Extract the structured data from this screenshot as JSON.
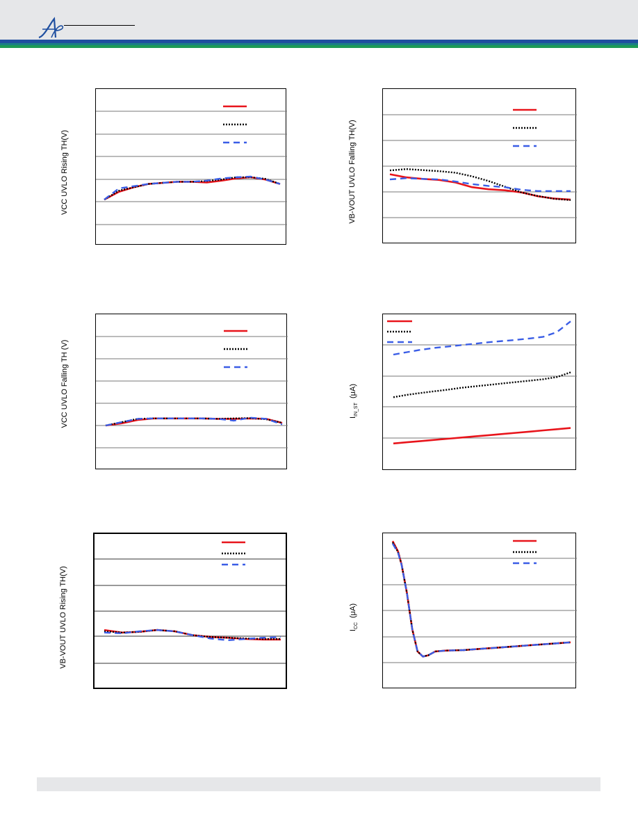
{
  "page": {
    "brand_logo": "AP monogram",
    "colors": {
      "header_band": "#e6e7e9",
      "brand_blue": "#1f4fa0",
      "brand_green": "#1d9a57"
    }
  },
  "chart_data": [
    {
      "id": "vcc-uvlo-rising",
      "type": "line",
      "ylabel": "VCC UVLO Rising TH(V)",
      "grid": "horizontal",
      "legend": "top-right",
      "series": [
        {
          "color": "#e8141b",
          "dash": "solid",
          "values": [
            2.05,
            2.4,
            2.6,
            2.75,
            2.8,
            2.85,
            2.85,
            2.82,
            2.9,
            3.0,
            3.05,
            2.95,
            2.75
          ]
        },
        {
          "color": "#000000",
          "dash": "dotted",
          "values": [
            2.05,
            2.45,
            2.6,
            2.75,
            2.8,
            2.85,
            2.85,
            2.88,
            2.95,
            3.05,
            3.05,
            2.98,
            2.75
          ]
        },
        {
          "color": "#3a5de6",
          "dash": "dashed",
          "values": [
            2.05,
            2.55,
            2.65,
            2.75,
            2.8,
            2.85,
            2.85,
            2.9,
            3.0,
            3.05,
            3.08,
            2.95,
            2.75
          ]
        }
      ],
      "ylim": [
        0,
        7
      ]
    },
    {
      "id": "vb-vout-uvlo-falling",
      "type": "line",
      "ylabel": "VB-VOUT UVLO Falling TH(V)",
      "grid": "horizontal",
      "legend": "top-right",
      "series": [
        {
          "color": "#e8141b",
          "dash": "solid",
          "values": [
            2.7,
            2.58,
            2.52,
            2.48,
            2.38,
            2.2,
            2.12,
            2.08,
            2.0,
            1.85,
            1.76,
            1.72
          ]
        },
        {
          "color": "#000000",
          "dash": "dotted",
          "values": [
            2.85,
            2.9,
            2.86,
            2.82,
            2.76,
            2.62,
            2.44,
            2.22,
            2.0,
            1.86,
            1.75,
            1.7
          ]
        },
        {
          "color": "#3a5de6",
          "dash": "dashed",
          "values": [
            2.5,
            2.55,
            2.52,
            2.5,
            2.42,
            2.32,
            2.25,
            2.2,
            2.1,
            2.05,
            2.05,
            2.05
          ]
        }
      ],
      "ylim": [
        0,
        6
      ]
    },
    {
      "id": "vcc-uvlo-falling",
      "type": "line",
      "ylabel": "VCC UVLO Falling TH (V)",
      "grid": "horizontal",
      "legend": "top-right",
      "series": [
        {
          "color": "#e8141b",
          "dash": "solid",
          "values": [
            2.0,
            2.1,
            2.25,
            2.32,
            2.32,
            2.32,
            2.32,
            2.3,
            2.3,
            2.32,
            2.3,
            2.12
          ]
        },
        {
          "color": "#000000",
          "dash": "dotted",
          "values": [
            2.0,
            2.15,
            2.3,
            2.32,
            2.32,
            2.32,
            2.32,
            2.3,
            2.32,
            2.33,
            2.28,
            2.12
          ]
        },
        {
          "color": "#3a5de6",
          "dash": "dashed",
          "values": [
            2.0,
            2.15,
            2.3,
            2.32,
            2.32,
            2.32,
            2.32,
            2.3,
            2.22,
            2.35,
            2.3,
            2.05
          ]
        }
      ],
      "ylim": [
        0,
        7
      ]
    },
    {
      "id": "iin-st",
      "type": "line",
      "ylabel_main": "I",
      "ylabel_sub": "IN_ST",
      "ylabel_unit": "(μA)",
      "grid": "horizontal",
      "legend": "top-left",
      "series": [
        {
          "color": "#e8141b",
          "dash": "solid",
          "values": [
            0.35,
            0.4,
            0.45,
            0.5,
            0.55,
            0.6,
            0.65,
            0.7,
            0.75,
            0.8,
            0.85,
            0.9,
            0.95,
            1.0
          ]
        },
        {
          "color": "#000000",
          "dash": "dotted",
          "values": [
            2.3,
            2.4,
            2.48,
            2.55,
            2.62,
            2.7,
            2.76,
            2.82,
            2.88,
            2.94,
            3.0,
            3.06,
            3.15,
            3.35
          ]
        },
        {
          "color": "#3a5de6",
          "dash": "dashed",
          "values": [
            4.1,
            4.2,
            4.3,
            4.38,
            4.44,
            4.5,
            4.56,
            4.62,
            4.67,
            4.72,
            4.78,
            4.85,
            5.05,
            5.5
          ]
        }
      ],
      "ylim": [
        -0.8,
        5.8
      ]
    },
    {
      "id": "vb-vout-uvlo-rising",
      "type": "line",
      "ylabel": "VB-VOUT UVLO Rising TH(V)",
      "grid": "horizontal",
      "legend": "top-right",
      "series": [
        {
          "color": "#e8141b",
          "dash": "solid",
          "values": [
            2.25,
            2.15,
            2.18,
            2.25,
            2.2,
            2.05,
            1.98,
            1.95,
            1.9,
            1.88,
            1.88
          ]
        },
        {
          "color": "#000000",
          "dash": "dotted",
          "values": [
            2.2,
            2.15,
            2.18,
            2.25,
            2.2,
            2.05,
            1.98,
            1.95,
            1.92,
            1.9,
            1.9
          ]
        },
        {
          "color": "#3a5de6",
          "dash": "dashed",
          "values": [
            2.15,
            2.12,
            2.2,
            2.25,
            2.2,
            2.05,
            1.92,
            1.85,
            1.9,
            1.95,
            1.98
          ]
        }
      ],
      "ylim": [
        0,
        6
      ]
    },
    {
      "id": "icc",
      "type": "line",
      "ylabel_main": "I",
      "ylabel_sub": "CC",
      "ylabel_unit": "(μA)",
      "grid": "horizontal",
      "legend": "top-right",
      "series": [
        {
          "color": "#e8141b",
          "dash": "solid",
          "x": [
            0,
            3,
            5,
            8,
            11,
            14,
            17,
            20,
            24,
            30,
            40,
            50,
            60,
            70,
            80,
            90,
            100
          ],
          "values": [
            5.2,
            4.8,
            4.3,
            3.2,
            1.8,
            0.95,
            0.75,
            0.8,
            0.95,
            0.98,
            1.0,
            1.05,
            1.1,
            1.15,
            1.2,
            1.25,
            1.3
          ]
        },
        {
          "color": "#000000",
          "dash": "dotted",
          "x": [
            0,
            3,
            5,
            8,
            11,
            14,
            17,
            20,
            24,
            30,
            40,
            50,
            60,
            70,
            80,
            90,
            100
          ],
          "values": [
            5.15,
            4.78,
            4.3,
            3.2,
            1.8,
            0.95,
            0.75,
            0.8,
            0.95,
            0.98,
            1.0,
            1.05,
            1.1,
            1.15,
            1.2,
            1.25,
            1.3
          ]
        },
        {
          "color": "#3a5de6",
          "dash": "dashed",
          "x": [
            0,
            3,
            5,
            8,
            11,
            14,
            17,
            20,
            24,
            30,
            40,
            50,
            60,
            70,
            80,
            90,
            100
          ],
          "values": [
            5.1,
            4.75,
            4.28,
            3.2,
            1.8,
            0.95,
            0.75,
            0.8,
            0.95,
            0.98,
            1.0,
            1.05,
            1.1,
            1.15,
            1.2,
            1.25,
            1.3
          ]
        }
      ],
      "ylim": [
        -0.5,
        5.5
      ]
    }
  ]
}
